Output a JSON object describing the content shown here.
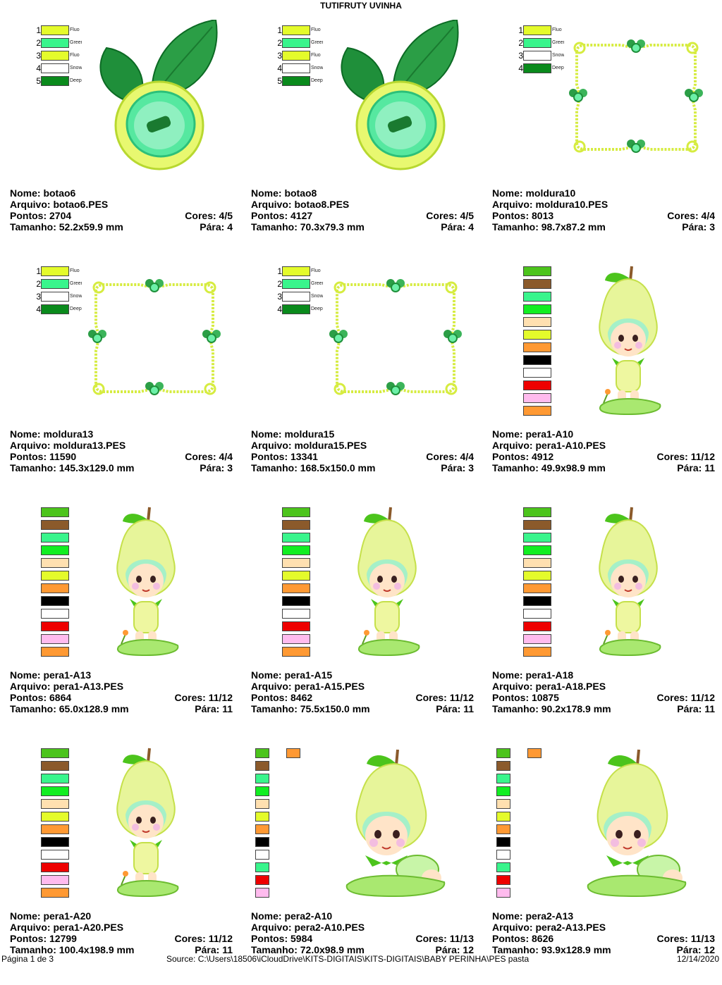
{
  "header": {
    "title": "TUTIFRUTY UVINHA"
  },
  "labels": {
    "name": "Nome: ",
    "file": "Arquivo: ",
    "points": "Pontos: ",
    "size": "Tamanho: ",
    "colors": "Cores: ",
    "stops": "Pára: "
  },
  "footer": {
    "page": "Página 1 de 3",
    "source": "Source: C:\\Users\\18506\\iCloudDrive\\KITS-DIGITAIS\\KITS-DIGITAIS\\BABY PERINHA\\PES pasta",
    "date": "12/14/2020"
  },
  "designs": [
    {
      "name": "botao6",
      "file": "botao6.PES",
      "points": "2704",
      "size": "52.2x59.9 mm",
      "colors": "4/5",
      "stops": "4",
      "art": "button",
      "swatches": [
        {
          "num": "1",
          "color": "#e4fb2b",
          "label": "Fluo"
        },
        {
          "num": "2",
          "color": "#39f58c",
          "label": "Green"
        },
        {
          "num": "3",
          "color": "#e4fb2b",
          "label": "Fluo"
        },
        {
          "num": "4",
          "color": "#ffffff",
          "label": "Snow"
        },
        {
          "num": "5",
          "color": "#0a8a1c",
          "label": "Deep"
        }
      ]
    },
    {
      "name": "botao8",
      "file": "botao8.PES",
      "points": "4127",
      "size": "70.3x79.3 mm",
      "colors": "4/5",
      "stops": "4",
      "art": "button",
      "swatches": [
        {
          "num": "1",
          "color": "#e4fb2b",
          "label": "Fluo"
        },
        {
          "num": "2",
          "color": "#39f58c",
          "label": "Green"
        },
        {
          "num": "3",
          "color": "#e4fb2b",
          "label": "Fluo"
        },
        {
          "num": "4",
          "color": "#ffffff",
          "label": "Snow"
        },
        {
          "num": "5",
          "color": "#0a8a1c",
          "label": "Deep"
        }
      ]
    },
    {
      "name": "moldura10",
      "file": "moldura10.PES",
      "points": "8013",
      "size": "98.7x87.2 mm",
      "colors": "4/4",
      "stops": "3",
      "art": "frame",
      "swatches": [
        {
          "num": "1",
          "color": "#e4fb2b",
          "label": "Fluo"
        },
        {
          "num": "2",
          "color": "#39f58c",
          "label": "Green"
        },
        {
          "num": "3",
          "color": "#ffffff",
          "label": "Snow"
        },
        {
          "num": "4",
          "color": "#0a8a1c",
          "label": "Deep"
        }
      ]
    },
    {
      "name": "moldura13",
      "file": "moldura13.PES",
      "points": "11590",
      "size": "145.3x129.0 mm",
      "colors": "4/4",
      "stops": "3",
      "art": "frame",
      "swatches": [
        {
          "num": "1",
          "color": "#e4fb2b",
          "label": "Fluo"
        },
        {
          "num": "2",
          "color": "#39f58c",
          "label": "Green"
        },
        {
          "num": "3",
          "color": "#ffffff",
          "label": "Snow"
        },
        {
          "num": "4",
          "color": "#0a8a1c",
          "label": "Deep"
        }
      ]
    },
    {
      "name": "moldura15",
      "file": "moldura15.PES",
      "points": "13341",
      "size": "168.5x150.0 mm",
      "colors": "4/4",
      "stops": "3",
      "art": "frame",
      "swatches": [
        {
          "num": "1",
          "color": "#e4fb2b",
          "label": "Fluo"
        },
        {
          "num": "2",
          "color": "#39f58c",
          "label": "Green"
        },
        {
          "num": "3",
          "color": "#ffffff",
          "label": "Snow"
        },
        {
          "num": "4",
          "color": "#0a8a1c",
          "label": "Deep"
        }
      ]
    },
    {
      "name": "pera1-A10",
      "file": "pera1-A10.PES",
      "points": "4912",
      "size": "49.9x98.9 mm",
      "colors": "11/12",
      "stops": "11",
      "art": "pear-standing",
      "swatches": [
        {
          "color": "#4cc41c"
        },
        {
          "color": "#8b5a2b"
        },
        {
          "color": "#39f58c"
        },
        {
          "color": "#12ee22"
        },
        {
          "color": "#ffe0b0"
        },
        {
          "color": "#e4fb2b"
        },
        {
          "color": "#ff9933"
        },
        {
          "color": "#000000"
        },
        {
          "color": "#ffffff"
        },
        {
          "color": "#ee0000"
        },
        {
          "color": "#ffbbee"
        },
        {
          "color": "#ff9933"
        }
      ]
    },
    {
      "name": "pera1-A13",
      "file": "pera1-A13.PES",
      "points": "6864",
      "size": "65.0x128.9 mm",
      "colors": "11/12",
      "stops": "11",
      "art": "pear-standing",
      "swatches": [
        {
          "color": "#4cc41c"
        },
        {
          "color": "#8b5a2b"
        },
        {
          "color": "#39f58c"
        },
        {
          "color": "#12ee22"
        },
        {
          "color": "#ffe0b0"
        },
        {
          "color": "#e4fb2b"
        },
        {
          "color": "#ff9933"
        },
        {
          "color": "#000000"
        },
        {
          "color": "#ffffff"
        },
        {
          "color": "#ee0000"
        },
        {
          "color": "#ffbbee"
        },
        {
          "color": "#ff9933"
        }
      ]
    },
    {
      "name": "pera1-A15",
      "file": "pera1-A15.PES",
      "points": "8462",
      "size": "75.5x150.0 mm",
      "colors": "11/12",
      "stops": "11",
      "art": "pear-standing",
      "swatches": [
        {
          "color": "#4cc41c"
        },
        {
          "color": "#8b5a2b"
        },
        {
          "color": "#39f58c"
        },
        {
          "color": "#12ee22"
        },
        {
          "color": "#ffe0b0"
        },
        {
          "color": "#e4fb2b"
        },
        {
          "color": "#ff9933"
        },
        {
          "color": "#000000"
        },
        {
          "color": "#ffffff"
        },
        {
          "color": "#ee0000"
        },
        {
          "color": "#ffbbee"
        },
        {
          "color": "#ff9933"
        }
      ]
    },
    {
      "name": "pera1-A18",
      "file": "pera1-A18.PES",
      "points": "10875",
      "size": "90.2x178.9 mm",
      "colors": "11/12",
      "stops": "11",
      "art": "pear-standing",
      "swatches": [
        {
          "color": "#4cc41c"
        },
        {
          "color": "#8b5a2b"
        },
        {
          "color": "#39f58c"
        },
        {
          "color": "#12ee22"
        },
        {
          "color": "#ffe0b0"
        },
        {
          "color": "#e4fb2b"
        },
        {
          "color": "#ff9933"
        },
        {
          "color": "#000000"
        },
        {
          "color": "#ffffff"
        },
        {
          "color": "#ee0000"
        },
        {
          "color": "#ffbbee"
        },
        {
          "color": "#ff9933"
        }
      ]
    },
    {
      "name": "pera1-A20",
      "file": "pera1-A20.PES",
      "points": "12799",
      "size": "100.4x198.9 mm",
      "colors": "11/12",
      "stops": "11",
      "art": "pear-standing",
      "swatches": [
        {
          "color": "#4cc41c"
        },
        {
          "color": "#8b5a2b"
        },
        {
          "color": "#39f58c"
        },
        {
          "color": "#12ee22"
        },
        {
          "color": "#ffe0b0"
        },
        {
          "color": "#e4fb2b"
        },
        {
          "color": "#ff9933"
        },
        {
          "color": "#000000"
        },
        {
          "color": "#ffffff"
        },
        {
          "color": "#ee0000"
        },
        {
          "color": "#ffbbee"
        },
        {
          "color": "#ff9933"
        }
      ]
    },
    {
      "name": "pera2-A10",
      "file": "pera2-A10.PES",
      "points": "5984",
      "size": "72.0x98.9 mm",
      "colors": "11/13",
      "stops": "12",
      "art": "pear-crawling",
      "swatches": [
        {
          "color": "#4cc41c"
        },
        {
          "color": "#8b5a2b"
        },
        {
          "color": "#39f58c"
        },
        {
          "color": "#12ee22"
        },
        {
          "color": "#ffe0b0"
        },
        {
          "color": "#e4fb2b"
        },
        {
          "color": "#ff9933"
        },
        {
          "color": "#000000"
        },
        {
          "color": "#ffffff"
        },
        {
          "color": "#39f58c"
        },
        {
          "color": "#ee0000"
        },
        {
          "color": "#ffbbee"
        },
        {
          "color": "#ff9933"
        }
      ]
    },
    {
      "name": "pera2-A13",
      "file": "pera2-A13.PES",
      "points": "8626",
      "size": "93.9x128.9 mm",
      "colors": "11/13",
      "stops": "12",
      "art": "pear-crawling",
      "swatches": [
        {
          "color": "#4cc41c"
        },
        {
          "color": "#8b5a2b"
        },
        {
          "color": "#39f58c"
        },
        {
          "color": "#12ee22"
        },
        {
          "color": "#ffe0b0"
        },
        {
          "color": "#e4fb2b"
        },
        {
          "color": "#ff9933"
        },
        {
          "color": "#000000"
        },
        {
          "color": "#ffffff"
        },
        {
          "color": "#39f58c"
        },
        {
          "color": "#ee0000"
        },
        {
          "color": "#ffbbee"
        },
        {
          "color": "#ff9933"
        }
      ]
    }
  ]
}
